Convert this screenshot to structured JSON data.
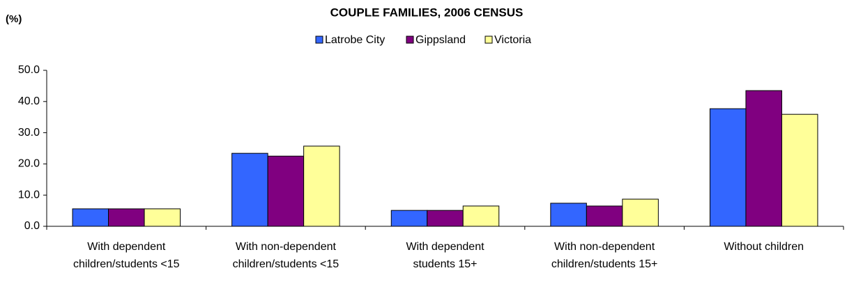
{
  "chart_data": {
    "type": "bar",
    "title": "COUPLE FAMILIES, 2006 CENSUS",
    "y_label": "(%)",
    "categories": [
      "With dependent\nchildren/students <15",
      "With non-dependent\nchildren/students <15",
      "With dependent\nstudents 15+",
      "With non-dependent\nchildren/students 15+",
      "Without children"
    ],
    "series": [
      {
        "name": "Latrobe City",
        "color": "#3366ff",
        "values": [
          5.6,
          23.4,
          5.1,
          7.4,
          37.7
        ]
      },
      {
        "name": "Gippsland",
        "color": "#800080",
        "values": [
          5.6,
          22.5,
          5.1,
          6.5,
          43.5
        ]
      },
      {
        "name": "Victoria",
        "color": "#ffff99",
        "values": [
          5.6,
          25.7,
          6.5,
          8.7,
          35.9
        ]
      }
    ],
    "ylim": [
      0,
      50
    ],
    "yticks": [
      {
        "value": 0,
        "label": "0.0"
      },
      {
        "value": 10,
        "label": "10.0"
      },
      {
        "value": 20,
        "label": "20.0"
      },
      {
        "value": 30,
        "label": "30.0"
      },
      {
        "value": 40,
        "label": "40.0"
      },
      {
        "value": 50,
        "label": "50.0"
      }
    ],
    "grid": false,
    "legend": "top"
  }
}
